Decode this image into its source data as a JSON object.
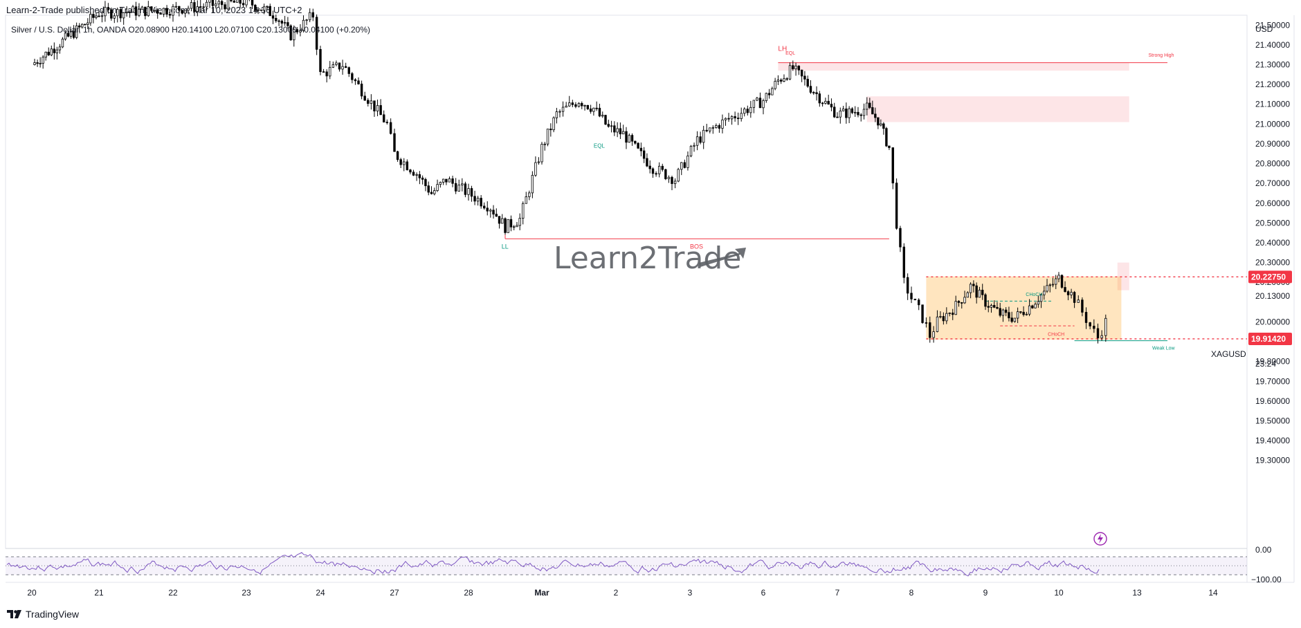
{
  "header": {
    "publisher": "Learn-2-Trade published on TradingView.com, Mar 10, 2023 14:36 UTC+2",
    "symbol_info": "Silver / U.S. Dollar, 1h, OANDA  O20.08900  H20.14100  L20.07100  C20.13000  +0.04100 (+0.20%)"
  },
  "footer": {
    "brand": "TradingView"
  },
  "watermark": {
    "text": "Learn2Trade"
  },
  "price_axis": {
    "currency": "USD",
    "ticks": [
      "21.50000",
      "21.40000",
      "21.30000",
      "21.20000",
      "21.10000",
      "21.00000",
      "20.90000",
      "20.80000",
      "20.70000",
      "20.60000",
      "20.50000",
      "20.40000",
      "20.30000",
      "20.20000",
      "20.13000",
      "20.00000",
      "19.90000",
      "19.80000",
      "19.70000",
      "19.60000",
      "19.50000",
      "19.40000",
      "19.30000"
    ],
    "tick_values": [
      21.5,
      21.4,
      21.3,
      21.2,
      21.1,
      21.0,
      20.9,
      20.8,
      20.7,
      20.6,
      20.5,
      20.4,
      20.3,
      20.2,
      20.13,
      20.0,
      19.9,
      19.8,
      19.7,
      19.6,
      19.5,
      19.4,
      19.3
    ],
    "badges": [
      {
        "label": "20.22750",
        "value": 20.2275,
        "color": "#f23645"
      },
      {
        "label": "19.91420",
        "value": 19.9142,
        "color": "#f23645"
      }
    ],
    "current": {
      "symbol": "XAGUSD",
      "price": "20.13000",
      "countdown": "23:24"
    }
  },
  "time_axis": {
    "labels": [
      "20",
      "21",
      "22",
      "23",
      "24",
      "27",
      "28",
      "Mar",
      "2",
      "3",
      "6",
      "7",
      "8",
      "9",
      "10",
      "13",
      "14"
    ],
    "bold": [
      "Mar"
    ]
  },
  "oscillator": {
    "ticks": [
      "0.00",
      "−100.00"
    ],
    "line_color": "#7e57c2"
  },
  "annotations": [
    {
      "text": "LH",
      "color": "#f23645"
    },
    {
      "text": "EQL",
      "color": "#f23645"
    },
    {
      "text": "Strong High",
      "color": "#f23645"
    },
    {
      "text": "EQL",
      "color": "#089981"
    },
    {
      "text": "LL",
      "color": "#089981"
    },
    {
      "text": "BOS",
      "color": "#f23645"
    },
    {
      "text": "CHoCH",
      "color": "#089981"
    },
    {
      "text": "CHoCH",
      "color": "#f23645"
    },
    {
      "text": "Weak Low",
      "color": "#089981"
    }
  ],
  "chart_data": {
    "type": "candlestick",
    "symbol": "XAGUSD",
    "timeframe": "1h",
    "ylim": [
      19.25,
      21.55
    ],
    "x_labels": [
      "20",
      "21",
      "22",
      "23",
      "24",
      "27",
      "28",
      "Mar",
      "2",
      "3",
      "6",
      "7",
      "8",
      "9",
      "10",
      "13",
      "14"
    ],
    "close_path": [
      [
        0,
        21.3
      ],
      [
        1,
        21.56
      ],
      [
        2,
        21.58
      ],
      [
        3,
        21.62
      ],
      [
        3.4,
        21.55
      ],
      [
        3.6,
        21.45
      ],
      [
        3.9,
        21.55
      ],
      [
        4.0,
        21.25
      ],
      [
        4.3,
        21.3
      ],
      [
        4.6,
        21.15
      ],
      [
        4.9,
        21.0
      ],
      [
        5.0,
        20.85
      ],
      [
        5.3,
        20.75
      ],
      [
        5.5,
        20.65
      ],
      [
        5.7,
        20.72
      ],
      [
        6.0,
        20.65
      ],
      [
        6.3,
        20.58
      ],
      [
        6.5,
        20.48
      ],
      [
        6.7,
        20.52
      ],
      [
        7.0,
        20.88
      ],
      [
        7.2,
        21.05
      ],
      [
        7.5,
        21.12
      ],
      [
        7.7,
        21.08
      ],
      [
        7.9,
        20.98
      ],
      [
        8.1,
        20.95
      ],
      [
        8.3,
        20.86
      ],
      [
        8.5,
        20.78
      ],
      [
        8.8,
        20.72
      ],
      [
        9.1,
        20.92
      ],
      [
        9.4,
        21.0
      ],
      [
        9.7,
        21.06
      ],
      [
        10.0,
        21.12
      ],
      [
        10.2,
        21.22
      ],
      [
        10.4,
        21.28
      ],
      [
        10.6,
        21.2
      ],
      [
        10.8,
        21.12
      ],
      [
        11.0,
        21.05
      ],
      [
        11.2,
        21.06
      ],
      [
        11.4,
        21.08
      ],
      [
        11.55,
        21.02
      ],
      [
        11.7,
        20.88
      ],
      [
        11.8,
        20.5
      ],
      [
        11.9,
        20.2
      ],
      [
        12.0,
        20.12
      ],
      [
        12.1,
        20.06
      ],
      [
        12.2,
        19.98
      ],
      [
        12.25,
        19.93
      ],
      [
        12.35,
        20.0
      ],
      [
        12.6,
        20.08
      ],
      [
        12.8,
        20.18
      ],
      [
        13.0,
        20.1
      ],
      [
        13.2,
        20.04
      ],
      [
        13.4,
        20.02
      ],
      [
        13.6,
        20.08
      ],
      [
        13.8,
        20.15
      ],
      [
        14.0,
        20.22
      ],
      [
        14.2,
        20.12
      ],
      [
        14.3,
        20.05
      ],
      [
        14.4,
        19.98
      ],
      [
        14.5,
        19.92
      ],
      [
        14.6,
        20.0
      ],
      [
        14.7,
        20.05
      ],
      [
        14.85,
        20.15
      ],
      [
        14.95,
        20.13
      ]
    ],
    "zones": [
      {
        "label": "supply",
        "x": [
          10.2,
          14.9
        ],
        "y": [
          21.27,
          21.31
        ],
        "color": "#f23645"
      },
      {
        "label": "supply",
        "x": [
          11.4,
          14.9
        ],
        "y": [
          21.01,
          21.14
        ],
        "color": "#f23645"
      },
      {
        "label": "supply",
        "x": [
          14.75,
          14.9
        ],
        "y": [
          20.16,
          20.3
        ],
        "color": "#f23645"
      },
      {
        "label": "range",
        "x": [
          12.2,
          14.8
        ],
        "y": [
          19.91,
          20.23
        ],
        "color": "#ff9800"
      }
    ],
    "levels": [
      {
        "label": "BOS",
        "value": 20.42,
        "x": [
          6.5,
          11.7
        ]
      },
      {
        "label": "Strong High",
        "value": 21.31,
        "x": [
          10.2,
          15.4
        ]
      },
      {
        "label": "Weak Low",
        "value": 19.905,
        "x": [
          14.2,
          15.4
        ]
      },
      {
        "label": "20.22750",
        "value": 20.2275
      },
      {
        "label": "19.91420",
        "value": 19.9142
      }
    ]
  }
}
